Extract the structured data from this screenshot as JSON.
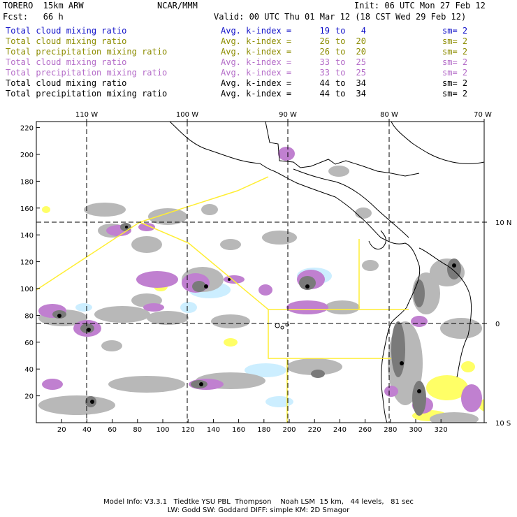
{
  "header": {
    "model": "TORERO  15km ARW",
    "org": "NCAR/MMM",
    "init": "Init: 06 UTC Mon 27 Feb 12",
    "fcst": "Fcst:   66 h",
    "valid": "Valid: 00 UTC Thu 01 Mar 12 (18 CST Wed 29 Feb 12)"
  },
  "legend": [
    {
      "field": "Total cloud mixing ratio",
      "avg": "Avg. k-index =",
      "v1": "19",
      "to": "to",
      "v2": "4",
      "sm": "sm= 2",
      "color": "#1010c8"
    },
    {
      "field": "Total cloud mixing ratio",
      "avg": "Avg. k-index =",
      "v1": "26",
      "to": "to",
      "v2": "20",
      "sm": "sm= 2",
      "color": "#8c8c00"
    },
    {
      "field": "Total precipitation mixing ratio",
      "avg": "Avg. k-index =",
      "v1": "26",
      "to": "to",
      "v2": "20",
      "sm": "sm= 2",
      "color": "#8c8c00"
    },
    {
      "field": "Total cloud mixing ratio",
      "avg": "Avg. k-index =",
      "v1": "33",
      "to": "to",
      "v2": "25",
      "sm": "sm= 2",
      "color": "#b46cc8"
    },
    {
      "field": "Total precipitation mixing ratio",
      "avg": "Avg. k-index =",
      "v1": "33",
      "to": "to",
      "v2": "25",
      "sm": "sm= 2",
      "color": "#b46cc8"
    },
    {
      "field": "Total cloud mixing ratio",
      "avg": "Avg. k-index =",
      "v1": "44",
      "to": "to",
      "v2": "34",
      "sm": "sm= 2",
      "color": "#000000"
    },
    {
      "field": "Total precipitation mixing ratio",
      "avg": "Avg. k-index =",
      "v1": "44",
      "to": "to",
      "v2": "34",
      "sm": "sm= 2",
      "color": "#000000"
    }
  ],
  "map": {
    "lon_labels": [
      "110 W",
      "100 W",
      "90 W",
      "80 W",
      "70 W"
    ],
    "lat_labels": [
      "10 N",
      "0",
      "10 S"
    ],
    "x_ticks": [
      "20",
      "40",
      "60",
      "80",
      "100",
      "120",
      "140",
      "160",
      "180",
      "200",
      "220",
      "240",
      "260",
      "280",
      "300",
      "320"
    ],
    "y_ticks": [
      "20",
      "40",
      "60",
      "80",
      "100",
      "120",
      "140",
      "160",
      "180",
      "200",
      "220"
    ],
    "colors": {
      "light_blue": "#cceeff",
      "yellow": "#ffff66",
      "light_gray": "#b8b8b8",
      "purple": "#c080d0",
      "dark_gray": "#7a7a7a",
      "black": "#000000",
      "domain_outline": "#ffee33"
    }
  },
  "footer": {
    "line1": "Model Info: V3.3.1   Tiedtke YSU PBL  Thompson    Noah LSM  15 km,   44 levels,   81 sec",
    "line2": "LW: Godd SW: Goddard DIFF: simple KM: 2D Smagor"
  }
}
